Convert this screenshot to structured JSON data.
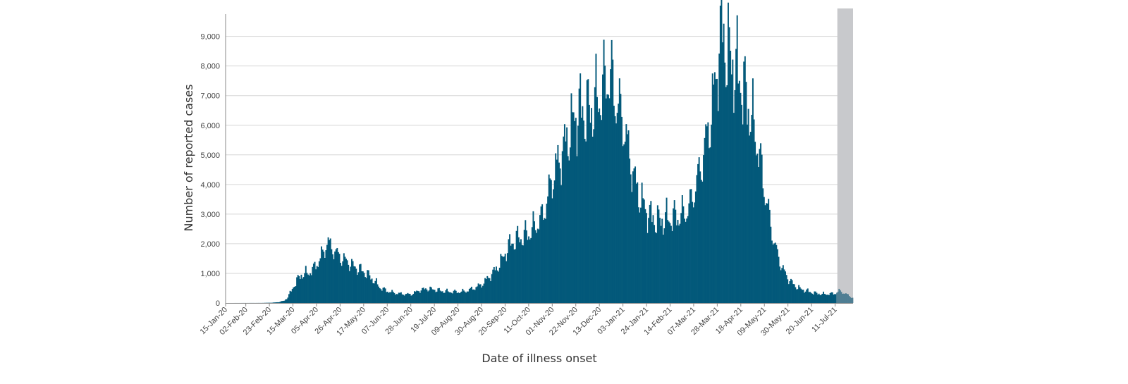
{
  "colors": {
    "bar": "#03597a",
    "incomplete_bar": "#4f7e93",
    "incomplete_band": "#c8c9cc",
    "grid": "#d6d6d6",
    "axis": "#888888"
  },
  "chart_data": {
    "type": "bar",
    "xlabel": "Date of illness onset",
    "ylabel": "Number of reported cases",
    "ylim": [
      0,
      9800
    ],
    "yticks": [
      0,
      1000,
      2000,
      3000,
      4000,
      5000,
      6000,
      7000,
      8000,
      9000
    ],
    "ytick_labels": [
      "0",
      "1,000",
      "2,000",
      "3,000",
      "4,000",
      "5,000",
      "6,000",
      "7,000",
      "8,000",
      "9,000"
    ],
    "grid": "horizontal",
    "x_start": "2020-01-15",
    "x_end": "2021-07-27",
    "xtick_labels": [
      "15-Jan-20",
      "02-Feb-20",
      "23-Feb-20",
      "15-Mar-20",
      "05-Apr-20",
      "26-Apr-20",
      "17-May-20",
      "07-Jun-20",
      "28-Jun-20",
      "19-Jul-20",
      "09-Aug-20",
      "30-Aug-20",
      "20-Sep-20",
      "11-Oct-20",
      "01-Nov-20",
      "22-Nov-20",
      "13-Dec-20",
      "03-Jan-21",
      "24-Jan-21",
      "14-Feb-21",
      "07-Mar-21",
      "28-Mar-21",
      "18-Apr-21",
      "09-May-21",
      "30-May-21",
      "20-Jun-21",
      "11-Jul-21"
    ],
    "xtick_dates": [
      "2020-01-15",
      "2020-02-02",
      "2020-02-23",
      "2020-03-15",
      "2020-04-05",
      "2020-04-26",
      "2020-05-17",
      "2020-06-07",
      "2020-06-28",
      "2020-07-19",
      "2020-08-09",
      "2020-08-30",
      "2020-09-20",
      "2020-10-11",
      "2020-11-01",
      "2020-11-22",
      "2020-12-13",
      "2021-01-03",
      "2021-01-24",
      "2021-02-14",
      "2021-03-07",
      "2021-03-28",
      "2021-04-18",
      "2021-05-09",
      "2021-05-30",
      "2021-06-20",
      "2021-07-11"
    ],
    "incomplete_period": [
      "2021-07-13",
      "2021-07-27"
    ],
    "series": [
      {
        "points": [
          [
            "2020-01-15",
            0
          ],
          [
            "2020-02-15",
            2
          ],
          [
            "2020-02-25",
            10
          ],
          [
            "2020-03-02",
            30
          ],
          [
            "2020-03-07",
            80
          ],
          [
            "2020-03-10",
            200
          ],
          [
            "2020-03-13",
            400
          ],
          [
            "2020-03-15",
            550
          ],
          [
            "2020-03-18",
            750
          ],
          [
            "2020-03-22",
            950
          ],
          [
            "2020-03-28",
            1000
          ],
          [
            "2020-04-02",
            1150
          ],
          [
            "2020-04-07",
            1450
          ],
          [
            "2020-04-12",
            1800
          ],
          [
            "2020-04-14",
            2100
          ],
          [
            "2020-04-17",
            1900
          ],
          [
            "2020-04-22",
            1700
          ],
          [
            "2020-04-27",
            1500
          ],
          [
            "2020-05-02",
            1400
          ],
          [
            "2020-05-07",
            1250
          ],
          [
            "2020-05-12",
            1150
          ],
          [
            "2020-05-17",
            1050
          ],
          [
            "2020-05-22",
            900
          ],
          [
            "2020-05-27",
            700
          ],
          [
            "2020-06-01",
            500
          ],
          [
            "2020-06-07",
            400
          ],
          [
            "2020-06-14",
            330
          ],
          [
            "2020-06-22",
            300
          ],
          [
            "2020-06-28",
            290
          ],
          [
            "2020-07-05",
            420
          ],
          [
            "2020-07-12",
            480
          ],
          [
            "2020-07-19",
            450
          ],
          [
            "2020-07-26",
            400
          ],
          [
            "2020-08-02",
            380
          ],
          [
            "2020-08-09",
            370
          ],
          [
            "2020-08-16",
            400
          ],
          [
            "2020-08-23",
            500
          ],
          [
            "2020-08-30",
            620
          ],
          [
            "2020-09-05",
            850
          ],
          [
            "2020-09-12",
            1150
          ],
          [
            "2020-09-18",
            1500
          ],
          [
            "2020-09-22",
            1850
          ],
          [
            "2020-09-28",
            2100
          ],
          [
            "2020-10-04",
            2200
          ],
          [
            "2020-10-11",
            2350
          ],
          [
            "2020-10-17",
            2600
          ],
          [
            "2020-10-23",
            2900
          ],
          [
            "2020-10-27",
            3400
          ],
          [
            "2020-11-01",
            4200
          ],
          [
            "2020-11-06",
            4700
          ],
          [
            "2020-11-12",
            5300
          ],
          [
            "2020-11-17",
            5800
          ],
          [
            "2020-11-22",
            6300
          ],
          [
            "2020-11-27",
            6500
          ],
          [
            "2020-12-02",
            6400
          ],
          [
            "2020-12-07",
            6600
          ],
          [
            "2020-12-13",
            6900
          ],
          [
            "2020-12-17",
            7300
          ],
          [
            "2020-12-21",
            7700
          ],
          [
            "2020-12-24",
            7500
          ],
          [
            "2020-12-28",
            6800
          ],
          [
            "2021-01-03",
            6200
          ],
          [
            "2021-01-07",
            5300
          ],
          [
            "2021-01-11",
            4600
          ],
          [
            "2021-01-15",
            3900
          ],
          [
            "2021-01-19",
            3500
          ],
          [
            "2021-01-24",
            3100
          ],
          [
            "2021-01-29",
            2850
          ],
          [
            "2021-02-03",
            2750
          ],
          [
            "2021-02-08",
            2800
          ],
          [
            "2021-02-14",
            2850
          ],
          [
            "2021-02-19",
            2900
          ],
          [
            "2021-02-24",
            2950
          ],
          [
            "2021-02-28",
            3050
          ],
          [
            "2021-03-04",
            3300
          ],
          [
            "2021-03-08",
            3800
          ],
          [
            "2021-03-13",
            4500
          ],
          [
            "2021-03-18",
            5400
          ],
          [
            "2021-03-23",
            6400
          ],
          [
            "2021-03-27",
            7500
          ],
          [
            "2021-03-30",
            8700
          ],
          [
            "2021-04-01",
            9200
          ],
          [
            "2021-04-05",
            8600
          ],
          [
            "2021-04-09",
            8200
          ],
          [
            "2021-04-13",
            7900
          ],
          [
            "2021-04-18",
            7500
          ],
          [
            "2021-04-23",
            6900
          ],
          [
            "2021-04-28",
            6200
          ],
          [
            "2021-05-03",
            5400
          ],
          [
            "2021-05-07",
            4400
          ],
          [
            "2021-05-11",
            3500
          ],
          [
            "2021-05-15",
            2600
          ],
          [
            "2021-05-19",
            1900
          ],
          [
            "2021-05-23",
            1400
          ],
          [
            "2021-05-27",
            1050
          ],
          [
            "2021-05-31",
            800
          ],
          [
            "2021-06-05",
            600
          ],
          [
            "2021-06-10",
            480
          ],
          [
            "2021-06-15",
            420
          ],
          [
            "2021-06-20",
            360
          ],
          [
            "2021-06-25",
            320
          ],
          [
            "2021-06-30",
            300
          ],
          [
            "2021-07-05",
            300
          ],
          [
            "2021-07-11",
            320
          ],
          [
            "2021-07-15",
            400
          ],
          [
            "2021-07-19",
            350
          ],
          [
            "2021-07-23",
            260
          ],
          [
            "2021-07-27",
            180
          ]
        ]
      }
    ]
  }
}
